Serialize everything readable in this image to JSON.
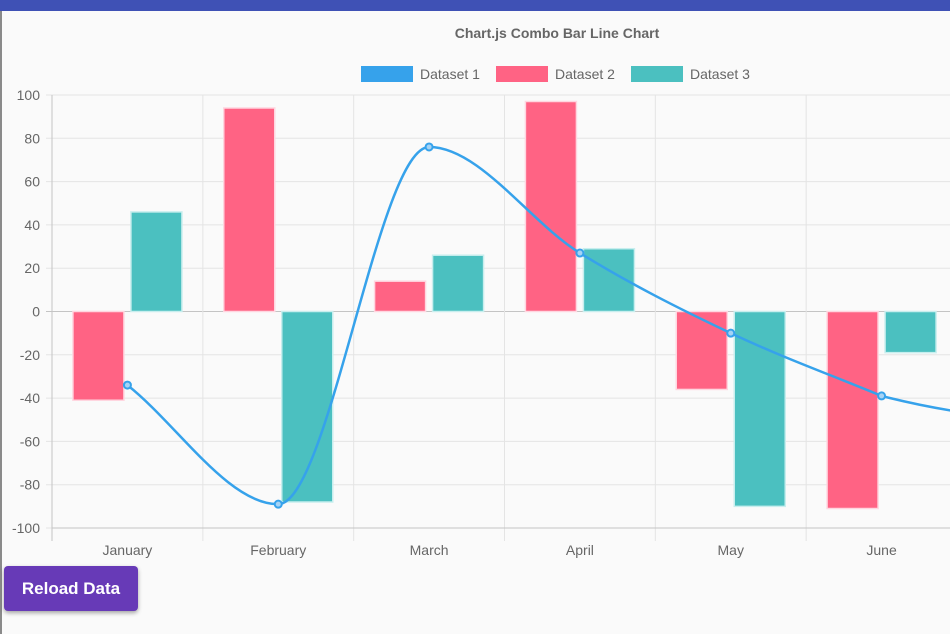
{
  "chart_data": {
    "type": "bar",
    "title": "Chart.js Combo Bar Line Chart",
    "categories": [
      "January",
      "February",
      "March",
      "April",
      "May",
      "June"
    ],
    "ylim": [
      -100,
      100
    ],
    "yticks": [
      100,
      80,
      60,
      40,
      20,
      0,
      -20,
      -40,
      -60,
      -80,
      -100
    ],
    "grid": true,
    "legend_position": "top",
    "series": [
      {
        "name": "Dataset 1",
        "type": "line",
        "color": "#36a2eb",
        "values": [
          -34,
          -89,
          76,
          27,
          -10,
          -39
        ]
      },
      {
        "name": "Dataset 2",
        "type": "bar",
        "color": "#ff6384",
        "values": [
          -41,
          94,
          14,
          97,
          -36,
          -91
        ]
      },
      {
        "name": "Dataset 3",
        "type": "bar",
        "color": "#4bc0c0",
        "values": [
          46,
          -88,
          26,
          29,
          -90,
          -19
        ]
      }
    ]
  },
  "controls": {
    "reload_label": "Reload Data"
  },
  "colors": {
    "header_bar": "#3f51b5",
    "button": "#673ab7"
  }
}
